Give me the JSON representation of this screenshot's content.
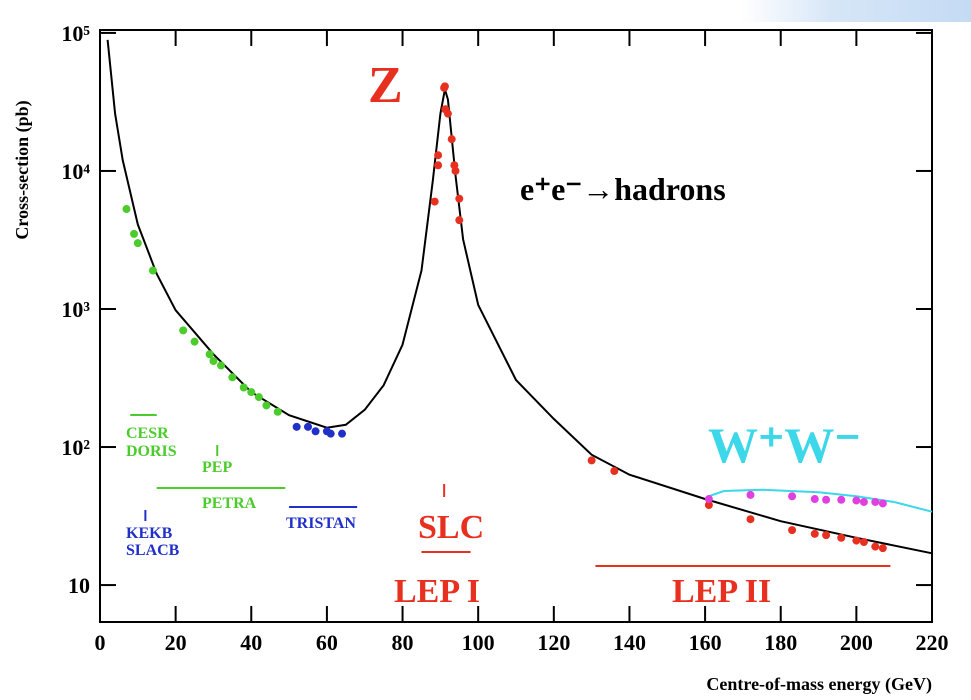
{
  "chart_data": {
    "type": "line",
    "ylabel": "Cross-section (pb)",
    "xlabel": "Centre-of-mass energy (GeV)",
    "xlim": [
      0,
      220
    ],
    "xticks": [
      0,
      20,
      40,
      60,
      80,
      100,
      120,
      140,
      160,
      180,
      200,
      220
    ],
    "ylim": [
      5.4,
      105000
    ],
    "yscale": "log",
    "yticks": [
      10,
      {
        "value": 100,
        "label": "10²"
      },
      {
        "value": 1000,
        "label": "10³"
      },
      {
        "value": 10000,
        "label": "10⁴"
      },
      {
        "value": 100000,
        "label": "10⁵"
      }
    ],
    "series": [
      {
        "type": "line",
        "color": "#000000",
        "x": [
          2,
          4,
          6,
          10,
          15,
          20,
          30,
          40,
          50,
          60,
          65,
          70,
          75,
          80,
          85,
          88,
          90,
          91.2,
          92,
          94,
          96,
          100,
          110,
          120,
          130,
          140,
          160,
          180,
          200,
          220
        ],
        "values": [
          89000,
          26000,
          12000,
          4100,
          1800,
          980,
          470,
          250,
          170,
          138,
          145,
          186,
          280,
          550,
          1900,
          8500,
          26000,
          39000,
          33000,
          9300,
          3200,
          1070,
          306,
          160,
          88,
          63,
          42,
          29,
          22,
          17
        ]
      },
      {
        "type": "line",
        "color": "#3cd7e8",
        "x": [
          161,
          165,
          175,
          190,
          200,
          210,
          220
        ],
        "values": [
          44,
          48,
          49,
          47,
          44,
          40,
          34
        ]
      },
      {
        "type": "scatter",
        "color": "#4ccc2c",
        "x": [
          7,
          9,
          10,
          14,
          22,
          25,
          29,
          30,
          32,
          35,
          38,
          40,
          42,
          44,
          47
        ],
        "values": [
          5300,
          3500,
          3000,
          1900,
          700,
          580,
          470,
          420,
          390,
          320,
          270,
          250,
          230,
          200,
          180
        ]
      },
      {
        "type": "scatter",
        "color": "#2030c8",
        "x": [
          52,
          55,
          57,
          60,
          61,
          64
        ],
        "values": [
          140,
          140,
          130,
          130,
          125,
          125
        ]
      },
      {
        "type": "scatter",
        "color": "#e83020",
        "x": [
          88.5,
          89.4,
          89.4,
          91,
          91.2,
          91.3,
          92,
          93,
          93.7,
          94,
          95,
          95
        ],
        "values": [
          6000,
          11000,
          13000,
          40000,
          41000,
          28000,
          26000,
          17000,
          11000,
          10000,
          6300,
          4400
        ]
      },
      {
        "type": "scatter",
        "color": "#e83020",
        "x": [
          130,
          136,
          161,
          172,
          183,
          189,
          192,
          196,
          200,
          202,
          205,
          207
        ],
        "values": [
          80,
          67,
          38,
          30,
          25,
          23.5,
          23,
          22,
          21,
          20.5,
          19,
          18.5
        ]
      },
      {
        "type": "scatter",
        "color": "#e040e0",
        "x": [
          161,
          172,
          183,
          189,
          192,
          196,
          200,
          202,
          205,
          207
        ],
        "values": [
          42,
          45,
          44,
          42,
          41.5,
          41.5,
          41,
          40,
          40,
          39
        ]
      }
    ],
    "annotations": [
      {
        "text": "Z",
        "color": "#e83020"
      },
      {
        "text": "e⁺e⁻→hadrons",
        "color": "#000000"
      },
      {
        "text": "W⁺W⁻",
        "color": "#3cd7e8"
      },
      {
        "text": "CESR",
        "color": "#4ccc2c",
        "range": [
          8,
          15
        ]
      },
      {
        "text": "DORIS",
        "color": "#4ccc2c"
      },
      {
        "text": "PEP",
        "color": "#4ccc2c",
        "range": [
          31,
          31
        ]
      },
      {
        "text": "PETRA",
        "color": "#4ccc2c",
        "range": [
          15,
          49
        ]
      },
      {
        "text": "KEKB",
        "color": "#2030c8",
        "range": [
          12,
          12
        ]
      },
      {
        "text": "SLACB",
        "color": "#2030c8"
      },
      {
        "text": "TRISTAN",
        "color": "#2030c8",
        "range": [
          50,
          68
        ]
      },
      {
        "text": "SLC",
        "color": "#e83020",
        "range": [
          91,
          91
        ]
      },
      {
        "text": "LEP I",
        "color": "#e83020",
        "range": [
          85,
          98
        ]
      },
      {
        "text": "LEP II",
        "color": "#e83020",
        "range": [
          131,
          209
        ]
      }
    ]
  }
}
